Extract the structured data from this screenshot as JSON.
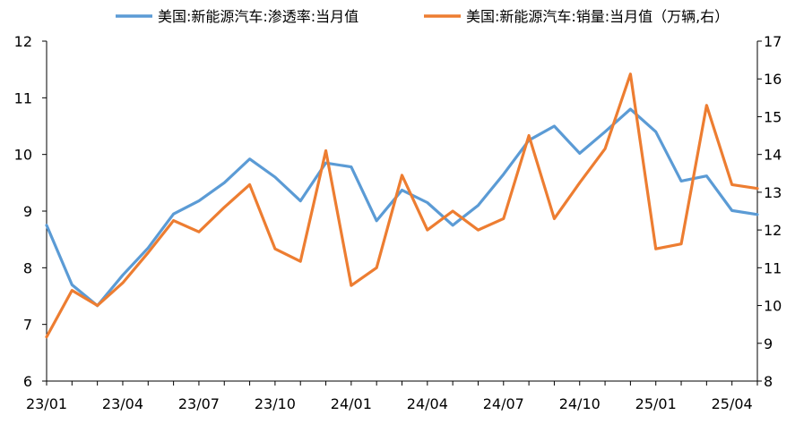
{
  "chart_data": {
    "type": "line",
    "x": [
      "23/01",
      "23/02",
      "23/03",
      "23/04",
      "23/05",
      "23/06",
      "23/07",
      "23/08",
      "23/09",
      "23/10",
      "23/11",
      "23/12",
      "24/01",
      "24/02",
      "24/03",
      "24/04",
      "24/05",
      "24/06",
      "24/07",
      "24/08",
      "24/09",
      "24/10",
      "24/11",
      "24/12",
      "25/01",
      "25/02",
      "25/03",
      "25/04",
      "25/05"
    ],
    "x_tick_labels": [
      "23/01",
      "23/04",
      "23/07",
      "23/10",
      "24/01",
      "24/04",
      "24/07",
      "24/10",
      "25/01",
      "25/04"
    ],
    "y_left": {
      "min": 6,
      "max": 12,
      "ticks": [
        "6",
        "7",
        "8",
        "9",
        "10",
        "11",
        "12"
      ]
    },
    "y_right": {
      "min": 8,
      "max": 17,
      "ticks": [
        "8",
        "9",
        "10",
        "11",
        "12",
        "13",
        "14",
        "15",
        "16",
        "17"
      ]
    },
    "series": [
      {
        "name": "美国:新能源汽车:渗透率:当月值",
        "axis": "left",
        "color": "#5b9bd5",
        "values": [
          8.75,
          7.7,
          7.33,
          7.87,
          8.35,
          8.95,
          9.18,
          9.5,
          9.92,
          9.6,
          9.18,
          9.85,
          9.78,
          8.83,
          9.37,
          9.15,
          8.75,
          9.1,
          9.65,
          10.25,
          10.5,
          10.02,
          10.4,
          10.8,
          10.4,
          9.53,
          9.62,
          9.01,
          8.94
        ]
      },
      {
        "name": "美国:新能源汽车:销量:当月值（万辆,右）",
        "axis": "right",
        "color": "#ed7d31",
        "values": [
          9.17,
          10.4,
          10.0,
          10.6,
          11.4,
          12.25,
          11.95,
          12.6,
          13.2,
          11.5,
          11.17,
          14.1,
          10.53,
          11.0,
          13.45,
          12.0,
          12.5,
          12.0,
          12.3,
          14.5,
          12.3,
          13.25,
          14.15,
          16.13,
          11.5,
          11.63,
          15.3,
          13.2,
          13.1
        ]
      }
    ],
    "grid": false,
    "legend_position": "top"
  }
}
